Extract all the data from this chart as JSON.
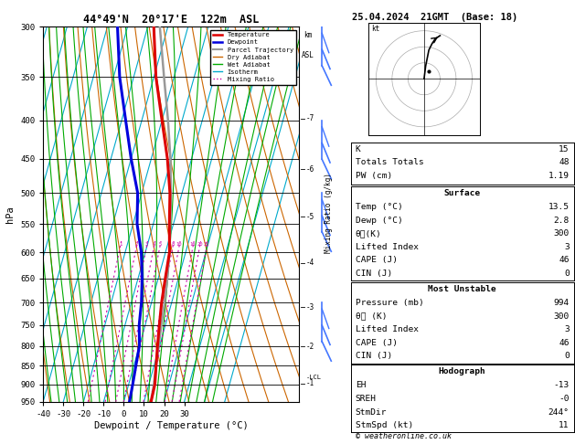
{
  "title_left": "44°49'N  20°17'E  122m  ASL",
  "title_right": "25.04.2024  21GMT  (Base: 18)",
  "xlabel": "Dewpoint / Temperature (°C)",
  "ylabel_left": "hPa",
  "pressure_levels": [
    300,
    350,
    400,
    450,
    500,
    550,
    600,
    650,
    700,
    750,
    800,
    850,
    900,
    950
  ],
  "xlim": [
    -40,
    35
  ],
  "xticks": [
    -40,
    -30,
    -20,
    -10,
    0,
    10,
    20,
    30
  ],
  "bg_color": "#ffffff",
  "sounding_temp": {
    "pressure": [
      950,
      900,
      850,
      800,
      750,
      700,
      650,
      600,
      550,
      500,
      450,
      400,
      350,
      300
    ],
    "temp_c": [
      13.5,
      13.0,
      11.0,
      9.0,
      7.0,
      5.0,
      3.5,
      2.0,
      -2.0,
      -6.0,
      -12.0,
      -20.0,
      -29.0,
      -37.0
    ],
    "color": "#dd0000",
    "lw": 2.2
  },
  "sounding_dew": {
    "pressure": [
      950,
      900,
      850,
      800,
      750,
      700,
      650,
      600,
      550,
      500,
      450,
      400,
      350,
      300
    ],
    "temp_c": [
      2.8,
      2.0,
      1.0,
      0.0,
      -3.0,
      -5.0,
      -8.0,
      -12.0,
      -18.0,
      -22.0,
      -30.0,
      -38.0,
      -47.0,
      -55.0
    ],
    "color": "#0000dd",
    "lw": 2.2
  },
  "parcel_temp": {
    "pressure": [
      950,
      900,
      850,
      800,
      750,
      700,
      650,
      600,
      550,
      500,
      450,
      400,
      350,
      300
    ],
    "temp_c": [
      13.5,
      12.5,
      11.0,
      9.5,
      8.0,
      6.5,
      4.5,
      2.0,
      -1.5,
      -5.5,
      -10.5,
      -17.0,
      -25.0,
      -34.0
    ],
    "color": "#999999",
    "lw": 1.8
  },
  "isotherm_color": "#00aacc",
  "isotherm_lw": 0.8,
  "dry_adiabat_color": "#cc6600",
  "dry_adiabat_lw": 0.8,
  "wet_adiabat_color": "#00aa00",
  "wet_adiabat_lw": 0.8,
  "mixing_ratio_color": "#cc00aa",
  "mixing_ratio_lw": 0.8,
  "mixing_ratio_values": [
    1,
    2,
    3,
    4,
    5,
    8,
    10,
    16,
    20,
    25
  ],
  "km_labels": [
    1,
    2,
    3,
    4,
    5,
    6,
    7
  ],
  "km_pressures": [
    898,
    802,
    710,
    620,
    538,
    465,
    398
  ],
  "lcl_pressure": 880,
  "wind_barb_pressures": [
    300,
    400,
    500,
    700
  ],
  "wind_barb_color": "#4477ff",
  "stats": {
    "K": 15,
    "Totals_Totals": 48,
    "PW_cm": 1.19,
    "Surface_Temp": 13.5,
    "Surface_Dewp": 2.8,
    "Surface_theta_e": 300,
    "Surface_LI": 3,
    "Surface_CAPE": 46,
    "Surface_CIN": 0,
    "MU_Pressure": 994,
    "MU_theta_e": 300,
    "MU_LI": 3,
    "MU_CAPE": 46,
    "MU_CIN": 0,
    "EH": -13,
    "SREH": "-0",
    "StmDir": "244°",
    "StmSpd": 11
  },
  "footer": "© weatheronline.co.uk"
}
